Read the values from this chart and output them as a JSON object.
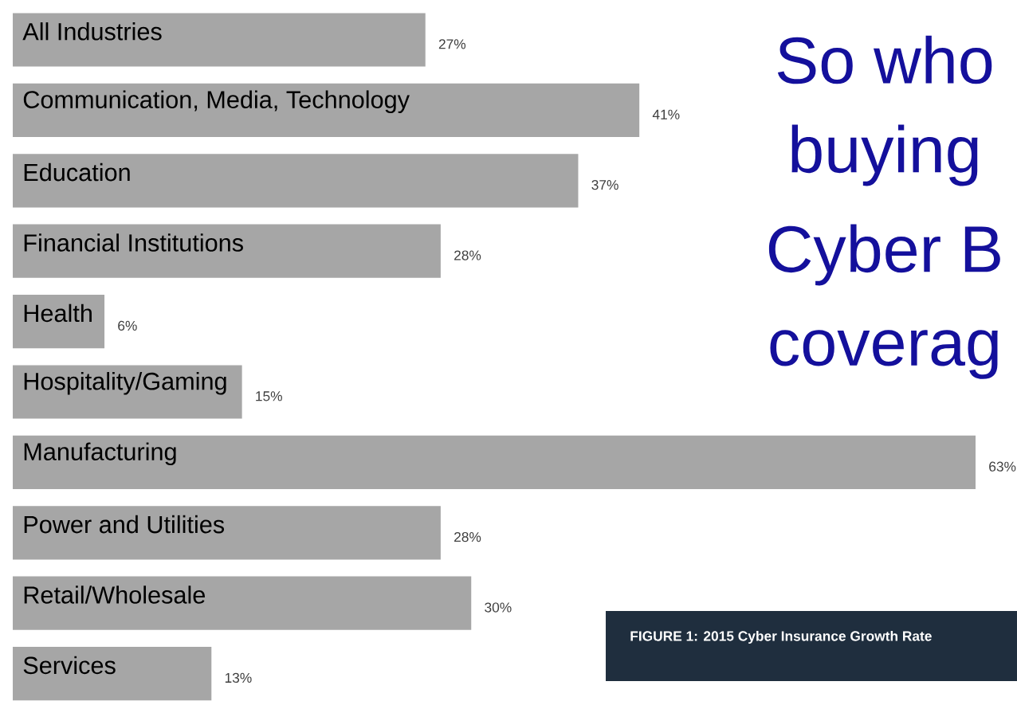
{
  "chart_data": {
    "type": "bar",
    "orientation": "horizontal",
    "tick_labels": "y",
    "categories": [
      "All Industries",
      "Communication, Media, Technology",
      "Education",
      "Financial Institutions",
      "Health",
      "Hospitality/Gaming",
      "Manufacturing",
      "Power and Utilities",
      "Retail/Wholesale",
      "Services"
    ],
    "values": [
      27,
      41,
      37,
      28,
      6,
      15,
      63,
      28,
      30,
      13
    ],
    "value_labels": [
      "27%",
      "41%",
      "37%",
      "28%",
      "6%",
      "15%",
      "63%",
      "28%",
      "30%",
      "13%"
    ],
    "color": "#a6a6a6",
    "annotations": [
      "So who",
      "buying",
      "Cyber B",
      "coverag",
      "FIGURE 1: 2015 Cyber Insurance Growth Rate"
    ]
  }
}
